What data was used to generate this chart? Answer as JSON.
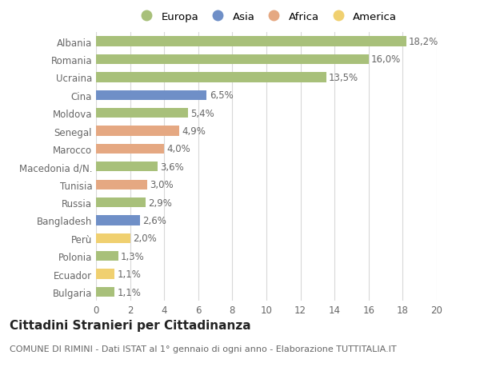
{
  "categories": [
    "Albania",
    "Romania",
    "Ucraina",
    "Cina",
    "Moldova",
    "Senegal",
    "Marocco",
    "Macedonia d/N.",
    "Tunisia",
    "Russia",
    "Bangladesh",
    "Perù",
    "Polonia",
    "Ecuador",
    "Bulgaria"
  ],
  "values": [
    18.2,
    16.0,
    13.5,
    6.5,
    5.4,
    4.9,
    4.0,
    3.6,
    3.0,
    2.9,
    2.6,
    2.0,
    1.3,
    1.1,
    1.1
  ],
  "labels": [
    "18,2%",
    "16,0%",
    "13,5%",
    "6,5%",
    "5,4%",
    "4,9%",
    "4,0%",
    "3,6%",
    "3,0%",
    "2,9%",
    "2,6%",
    "2,0%",
    "1,3%",
    "1,1%",
    "1,1%"
  ],
  "continents": [
    "Europa",
    "Europa",
    "Europa",
    "Asia",
    "Europa",
    "Africa",
    "Africa",
    "Europa",
    "Africa",
    "Europa",
    "Asia",
    "America",
    "Europa",
    "America",
    "Europa"
  ],
  "colors": {
    "Europa": "#a8c07a",
    "Asia": "#6f8fc7",
    "Africa": "#e5a882",
    "America": "#f0d070"
  },
  "legend_order": [
    "Europa",
    "Asia",
    "Africa",
    "America"
  ],
  "title": "Cittadini Stranieri per Cittadinanza",
  "subtitle": "COMUNE DI RIMINI - Dati ISTAT al 1° gennaio di ogni anno - Elaborazione TUTTITALIA.IT",
  "xlim": [
    0,
    20
  ],
  "xticks": [
    0,
    2,
    4,
    6,
    8,
    10,
    12,
    14,
    16,
    18,
    20
  ],
  "bg_color": "#ffffff",
  "grid_color": "#d8d8d8",
  "bar_height": 0.55,
  "label_fontsize": 8.5,
  "tick_fontsize": 8.5,
  "title_fontsize": 11,
  "subtitle_fontsize": 8
}
